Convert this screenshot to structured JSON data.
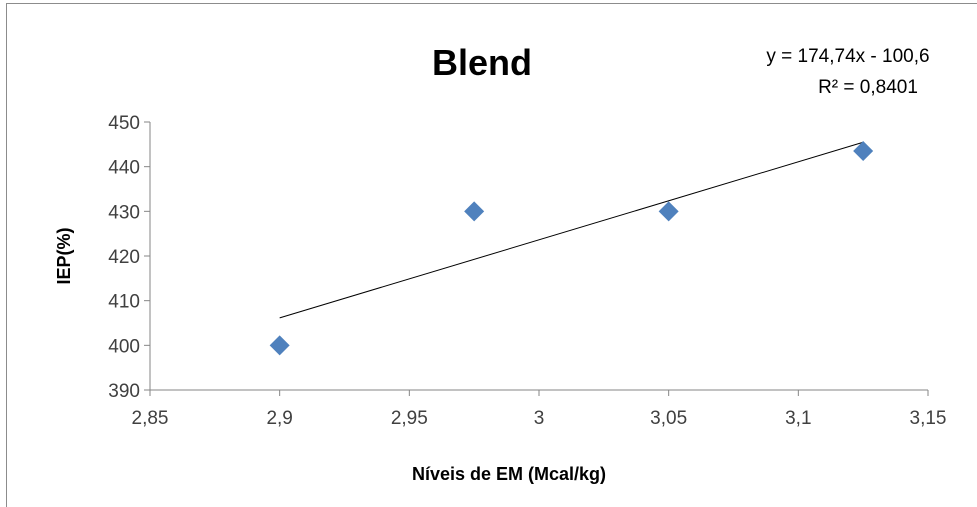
{
  "chart_data": {
    "type": "scatter",
    "title": "Blend",
    "xlabel": "Níveis de EM (Mcal/kg)",
    "ylabel": "IEP(%)",
    "xlim": [
      2.85,
      3.15
    ],
    "ylim": [
      390,
      450
    ],
    "x_ticks": [
      2.85,
      2.9,
      2.95,
      3.0,
      3.05,
      3.1,
      3.15
    ],
    "x_tick_labels": [
      "2,85",
      "2,9",
      "2,95",
      "3",
      "3,05",
      "3,1",
      "3,15"
    ],
    "y_ticks": [
      390,
      400,
      410,
      420,
      430,
      440,
      450
    ],
    "y_tick_labels": [
      "390",
      "400",
      "410",
      "420",
      "430",
      "440",
      "450"
    ],
    "series": [
      {
        "x": [
          2.9,
          2.975,
          3.05,
          3.125
        ],
        "y": [
          400,
          430,
          430,
          443.5
        ],
        "marker": "diamond",
        "color": "#4F81BD"
      }
    ],
    "trendline": {
      "type": "linear",
      "slope": 174.74,
      "intercept": -100.6,
      "x_range": [
        2.9,
        3.125
      ],
      "color": "#000000",
      "equation_label": "y = 174,74x - 100,6",
      "r2_label": "R² = 0,8401"
    },
    "grid": false,
    "legend": "none"
  }
}
